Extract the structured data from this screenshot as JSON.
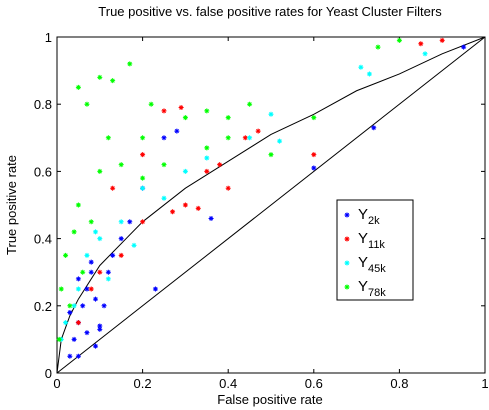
{
  "chart_data": {
    "type": "scatter",
    "title": "True positive vs. false positive rates for Yeast Cluster Filters",
    "xlabel": "False positive rate",
    "ylabel": "True positive rate",
    "xlim": [
      0,
      1
    ],
    "ylim": [
      0,
      1
    ],
    "xticks": [
      0,
      0.2,
      0.4,
      0.6,
      0.8,
      1
    ],
    "yticks": [
      0,
      0.2,
      0.4,
      0.6,
      0.8,
      1
    ],
    "legend": "center-right",
    "series": [
      {
        "name": "Y2k",
        "color": "#0000ff",
        "x": [
          0.03,
          0.04,
          0.05,
          0.06,
          0.07,
          0.08,
          0.09,
          0.1,
          0.03,
          0.05,
          0.07,
          0.09,
          0.11,
          0.12,
          0.6,
          0.74,
          0.95,
          0.36,
          0.23,
          0.1,
          0.05,
          0.15,
          0.2,
          0.25,
          0.28,
          0.13,
          0.17,
          0.08
        ],
        "values": [
          0.05,
          0.1,
          0.15,
          0.2,
          0.25,
          0.3,
          0.22,
          0.13,
          0.18,
          0.28,
          0.12,
          0.08,
          0.2,
          0.3,
          0.61,
          0.73,
          0.97,
          0.46,
          0.25,
          0.14,
          0.05,
          0.4,
          0.55,
          0.7,
          0.72,
          0.35,
          0.45,
          0.33
        ]
      },
      {
        "name": "Y11k",
        "color": "#ff0000",
        "x": [
          0.38,
          0.4,
          0.3,
          0.2,
          0.25,
          0.29,
          0.47,
          0.6,
          0.9,
          0.85,
          0.15,
          0.1,
          0.05,
          0.35,
          0.2,
          0.13,
          0.27,
          0.33,
          0.44,
          0.08
        ],
        "values": [
          0.62,
          0.55,
          0.5,
          0.45,
          0.78,
          0.79,
          0.72,
          0.65,
          0.99,
          0.98,
          0.35,
          0.3,
          0.15,
          0.6,
          0.65,
          0.55,
          0.48,
          0.49,
          0.7,
          0.25
        ]
      },
      {
        "name": "Y45k",
        "color": "#00ffff",
        "x": [
          0.45,
          0.52,
          0.71,
          0.73,
          0.86,
          0.1,
          0.05,
          0.15,
          0.02,
          0.2,
          0.3,
          0.35,
          0.01,
          0.07,
          0.12,
          0.5,
          0.18,
          0.25,
          0.04,
          0.09
        ],
        "values": [
          0.7,
          0.69,
          0.91,
          0.89,
          0.95,
          0.4,
          0.25,
          0.45,
          0.15,
          0.55,
          0.6,
          0.64,
          0.1,
          0.35,
          0.28,
          0.77,
          0.38,
          0.52,
          0.2,
          0.42
        ]
      },
      {
        "name": "Y78k",
        "color": "#00ff00",
        "x": [
          0.05,
          0.07,
          0.1,
          0.13,
          0.17,
          0.22,
          0.3,
          0.35,
          0.4,
          0.45,
          0.6,
          0.4,
          0.5,
          0.35,
          0.2,
          0.1,
          0.05,
          0.02,
          0.01,
          0.03,
          0.005,
          0.08,
          0.15,
          0.25,
          0.8,
          0.75,
          0.12,
          0.2,
          0.04,
          0.06
        ],
        "values": [
          0.85,
          0.8,
          0.88,
          0.87,
          0.92,
          0.8,
          0.76,
          0.78,
          0.76,
          0.8,
          0.76,
          0.7,
          0.65,
          0.67,
          0.7,
          0.6,
          0.5,
          0.35,
          0.25,
          0.2,
          0.1,
          0.45,
          0.62,
          0.62,
          0.99,
          0.97,
          0.7,
          0.58,
          0.42,
          0.3
        ]
      }
    ],
    "lines": [
      {
        "color": "#000000",
        "x": [
          0,
          1
        ],
        "values": [
          0,
          1
        ]
      },
      {
        "color": "#000000",
        "x": [
          0,
          0.01,
          0.03,
          0.05,
          0.1,
          0.2,
          0.3,
          0.4,
          0.5,
          0.6,
          0.7,
          0.8,
          0.9,
          1
        ],
        "values": [
          0,
          0.1,
          0.17,
          0.22,
          0.32,
          0.45,
          0.55,
          0.63,
          0.71,
          0.77,
          0.84,
          0.89,
          0.95,
          1
        ]
      }
    ]
  }
}
